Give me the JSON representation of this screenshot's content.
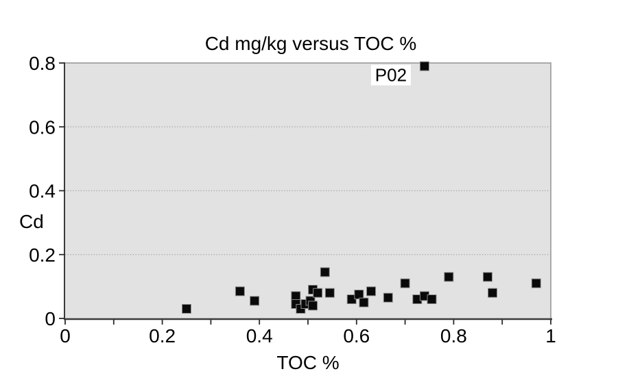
{
  "chart_data": {
    "type": "scatter",
    "title": "Cd mg/kg versus TOC %",
    "xlabel": "TOC %",
    "ylabel": "Cd",
    "xlim": [
      0,
      1
    ],
    "ylim": [
      0,
      0.8
    ],
    "grid": "horizontal dotted lines at y ticks",
    "legend_position": "none",
    "marker_shape": "filled-square",
    "marker_size_px": 13,
    "x_tick_labels": [
      {
        "value": 0,
        "label": "0"
      },
      {
        "value": 0.2,
        "label": "0.2"
      },
      {
        "value": 0.4,
        "label": "0.4"
      },
      {
        "value": 0.6,
        "label": "0.6"
      },
      {
        "value": 0.8,
        "label": "0.8"
      },
      {
        "value": 1,
        "label": "1"
      }
    ],
    "x_minor_tick_values": [
      0,
      0.1,
      0.2,
      0.3,
      0.4,
      0.5,
      0.6,
      0.7,
      0.8,
      0.9,
      1
    ],
    "y_tick_labels": [
      {
        "value": 0,
        "label": "0"
      },
      {
        "value": 0.2,
        "label": "0.2"
      },
      {
        "value": 0.4,
        "label": "0.4"
      },
      {
        "value": 0.6,
        "label": "0.6"
      },
      {
        "value": 0.8,
        "label": "0.8"
      }
    ],
    "grid_y_values": [
      0.2,
      0.4,
      0.6
    ],
    "points": [
      [
        0.25,
        0.03
      ],
      [
        0.36,
        0.085
      ],
      [
        0.39,
        0.055
      ],
      [
        0.475,
        0.07
      ],
      [
        0.475,
        0.045
      ],
      [
        0.485,
        0.03
      ],
      [
        0.495,
        0.045
      ],
      [
        0.505,
        0.055
      ],
      [
        0.51,
        0.04
      ],
      [
        0.51,
        0.09
      ],
      [
        0.52,
        0.08
      ],
      [
        0.535,
        0.145
      ],
      [
        0.545,
        0.08
      ],
      [
        0.59,
        0.06
      ],
      [
        0.605,
        0.075
      ],
      [
        0.615,
        0.05
      ],
      [
        0.63,
        0.085
      ],
      [
        0.665,
        0.065
      ],
      [
        0.7,
        0.11
      ],
      [
        0.725,
        0.06
      ],
      [
        0.74,
        0.07
      ],
      [
        0.755,
        0.06
      ],
      [
        0.79,
        0.13
      ],
      [
        0.87,
        0.13
      ],
      [
        0.88,
        0.08
      ],
      [
        0.97,
        0.11
      ],
      [
        0.74,
        0.79
      ]
    ],
    "annotations": [
      {
        "label": "P02",
        "x": 0.74,
        "y": 0.79,
        "label_side": "left"
      }
    ],
    "colors": {
      "page_bg": "#ffffff",
      "plot_bg": "#e2e2e2",
      "marker": "#0a0a0a",
      "marker_outline": "#8c8c8c",
      "axis_line": "#3a3a3a",
      "plot_border": "#a9a9a9",
      "gridline": "#9a9a9a",
      "tick": "#2b2b2b",
      "text": "#000000",
      "annotation_bg": "#ffffff"
    }
  }
}
